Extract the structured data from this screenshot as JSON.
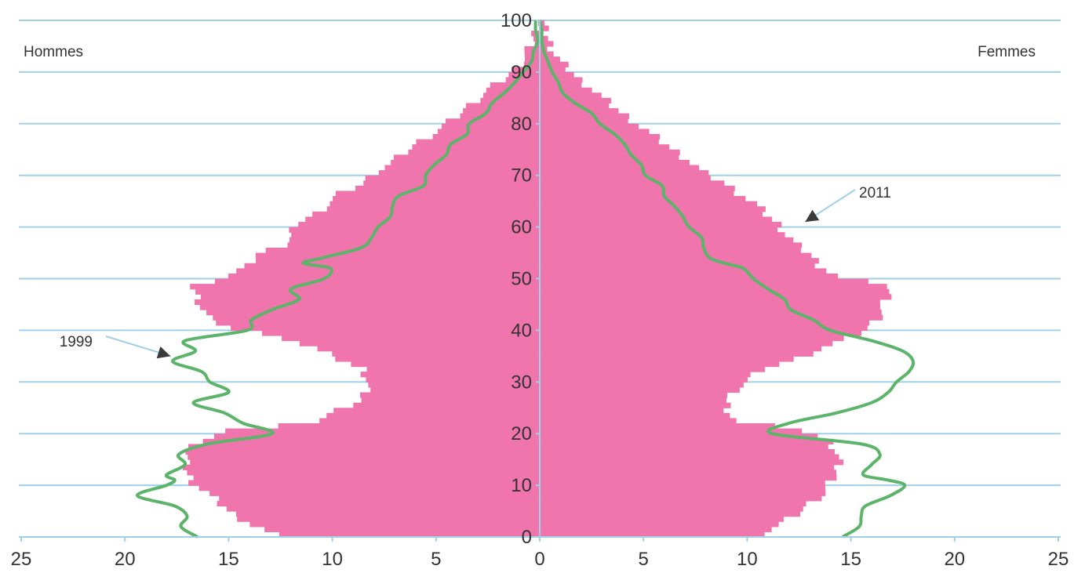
{
  "chart_data": {
    "type": "population-pyramid",
    "title": "",
    "left_label": "Hommes",
    "right_label": "Femmes",
    "x_ticks": [
      "25",
      "20",
      "15",
      "10",
      "5",
      "0",
      "5",
      "10",
      "15",
      "20",
      "25"
    ],
    "y_ticks": [
      "0",
      "10",
      "20",
      "30",
      "40",
      "50",
      "60",
      "70",
      "80",
      "90",
      "100"
    ],
    "xlim": [
      -25,
      25
    ],
    "ylim": [
      0,
      100
    ],
    "grid": true,
    "colors": {
      "bars": "#f075ac",
      "line": "#5bb46a",
      "grid": "#9fd0e6",
      "axis": "#9fd0e6",
      "arrow": "#3a3a3a"
    },
    "series": [
      {
        "name": "2011",
        "style": "bars",
        "ages": [
          0,
          2,
          4,
          6,
          8,
          10,
          12,
          14,
          16,
          18,
          20,
          22,
          24,
          26,
          28,
          30,
          32,
          34,
          36,
          38,
          40,
          42,
          44,
          46,
          48,
          50,
          52,
          54,
          56,
          58,
          60,
          62,
          64,
          66,
          68,
          70,
          72,
          74,
          76,
          78,
          80,
          82,
          84,
          86,
          88,
          90,
          92,
          94,
          96,
          98,
          100
        ],
        "men": [
          12.8,
          13.9,
          14.8,
          15.4,
          16.0,
          16.7,
          17.0,
          17.1,
          17.0,
          16.4,
          15.0,
          10.7,
          9.7,
          8.6,
          8.4,
          8.3,
          8.5,
          9.7,
          10.8,
          12.2,
          14.9,
          16.0,
          16.3,
          16.5,
          16.7,
          15.1,
          14.0,
          13.7,
          12.4,
          11.9,
          11.8,
          10.8,
          10.2,
          9.6,
          8.5,
          8.0,
          7.1,
          6.5,
          5.8,
          5.0,
          4.3,
          3.7,
          3.1,
          2.5,
          1.8,
          1.2,
          0.8,
          0.5,
          0.3,
          0.2,
          0.1
        ],
        "women": [
          10.6,
          11.6,
          12.4,
          13.0,
          13.7,
          14.0,
          14.3,
          14.4,
          14.3,
          14.0,
          12.8,
          9.4,
          9.1,
          9.0,
          9.4,
          10.1,
          10.7,
          12.4,
          13.5,
          14.9,
          15.8,
          16.3,
          16.5,
          16.8,
          16.9,
          14.3,
          13.5,
          13.1,
          12.4,
          11.9,
          11.5,
          10.9,
          10.4,
          9.6,
          8.9,
          7.9,
          7.3,
          6.6,
          5.9,
          5.2,
          4.5,
          3.8,
          3.2,
          2.6,
          1.9,
          1.4,
          0.9,
          0.6,
          0.4,
          0.2,
          0.1
        ]
      },
      {
        "name": "1999",
        "style": "line",
        "ages": [
          0,
          2,
          4,
          6,
          8,
          10,
          11,
          12,
          14,
          16,
          18,
          20,
          22,
          24,
          26,
          28,
          30,
          32,
          34,
          36,
          38,
          40,
          42,
          44,
          46,
          48,
          50,
          52,
          53,
          54,
          56,
          58,
          60,
          62,
          64,
          66,
          68,
          70,
          72,
          74,
          76,
          78,
          80,
          82,
          84,
          86,
          88,
          90,
          92,
          94,
          96,
          98,
          100
        ],
        "men": [
          16.5,
          17.3,
          17.0,
          17.6,
          19.4,
          18.0,
          17.6,
          18.0,
          17.1,
          17.4,
          16.0,
          12.9,
          14.3,
          15.2,
          16.7,
          15.0,
          15.9,
          16.3,
          17.7,
          16.6,
          17.1,
          14.1,
          13.9,
          12.9,
          11.6,
          12.0,
          10.4,
          10.1,
          11.4,
          10.5,
          8.6,
          8.1,
          7.8,
          7.2,
          7.1,
          6.8,
          5.6,
          5.5,
          5.1,
          4.5,
          4.3,
          3.5,
          3.4,
          2.6,
          2.3,
          1.7,
          1.2,
          0.8,
          0.4,
          0.3,
          0.1,
          0.2,
          0.2
        ],
        "women": [
          14.6,
          15.4,
          15.5,
          15.7,
          16.9,
          17.6,
          16.8,
          15.6,
          16.0,
          16.4,
          15.5,
          11.2,
          12.0,
          14.3,
          16.0,
          16.8,
          17.2,
          17.8,
          18.0,
          17.5,
          16.0,
          14.0,
          13.2,
          12.1,
          11.8,
          11.0,
          10.3,
          9.8,
          8.9,
          8.2,
          7.9,
          7.8,
          7.2,
          6.9,
          6.5,
          6.0,
          5.9,
          5.1,
          4.9,
          4.4,
          4.1,
          3.6,
          2.9,
          2.5,
          1.7,
          1.1,
          0.9,
          0.6,
          0.4,
          0.2,
          0.1,
          0.1,
          0.0
        ]
      }
    ],
    "annotations": [
      {
        "text": "2011",
        "target": [
          12.8,
          61
        ]
      },
      {
        "text": "1999",
        "target": [
          -17.8,
          35
        ]
      }
    ]
  }
}
